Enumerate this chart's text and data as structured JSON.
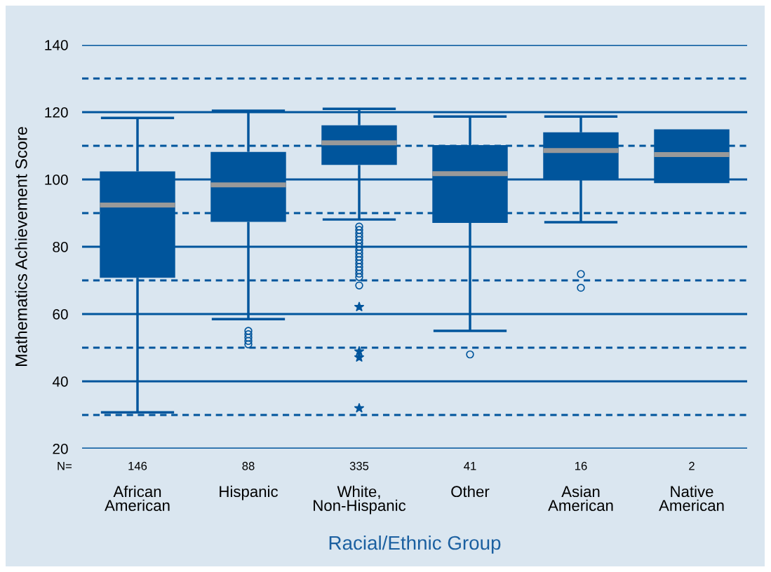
{
  "chart_data": {
    "type": "box",
    "ylabel": "Mathematics Achievement Score",
    "xlabel": "Racial/Ethnic Group",
    "categories": [
      "African\nAmerican",
      "Hispanic",
      "White,\nNon-Hispanic",
      "Other",
      "Asian\nAmerican",
      "Native\nAmerican"
    ],
    "boxes": [
      {
        "low": 30.8,
        "q1": 70.8,
        "median": 92.4,
        "q3": 102.4,
        "high": 118.3
      },
      {
        "low": 58.5,
        "q1": 87.4,
        "median": 98.4,
        "q3": 108.2,
        "high": 120.4,
        "outliers": [
          55,
          54,
          53,
          52,
          51
        ]
      },
      {
        "low": 88.1,
        "q1": 104.3,
        "median": 110.9,
        "q3": 116.1,
        "high": 121.0,
        "outliers": [
          86,
          85,
          84,
          83,
          82,
          81,
          80,
          79,
          78,
          77,
          76,
          75,
          74,
          73,
          72,
          71,
          68.5
        ]
      },
      {
        "low": 55.0,
        "q1": 87.1,
        "median": 101.7,
        "q3": 110.2,
        "high": 118.7,
        "outliers": [
          48.0
        ]
      },
      {
        "low": 87.3,
        "q1": 100.0,
        "median": 108.6,
        "q3": 114.0,
        "high": 118.7,
        "outliers": [
          71.9,
          67.8
        ]
      },
      {
        "low": 98.9,
        "q1": 98.9,
        "median": 107.4,
        "q3": 114.9,
        "high": 114.9
      }
    ],
    "color": "#00559c",
    "series": [
      {
        "type": "scatter",
        "marker": "star",
        "color": "#00559c",
        "x": [
          "White,\nNon-Hispanic",
          "White,\nNon-Hispanic",
          "White,\nNon-Hispanic",
          "White,\nNon-Hispanic"
        ],
        "values": [
          62.1,
          48.9,
          47.1,
          32.0
        ]
      }
    ],
    "ylim": [
      20,
      140
    ],
    "yticks": [
      20,
      {
        "value": 30,
        "label": null
      },
      40,
      {
        "value": 50,
        "label": null
      },
      60,
      {
        "value": 70,
        "label": null
      },
      80,
      {
        "value": 90,
        "label": null
      },
      100,
      {
        "value": 110,
        "label": null
      },
      120,
      {
        "value": 130,
        "label": null
      },
      140
    ],
    "grid": "y",
    "annotations": [
      "N=",
      "146",
      "88",
      "335",
      "41",
      "16",
      "2"
    ]
  }
}
